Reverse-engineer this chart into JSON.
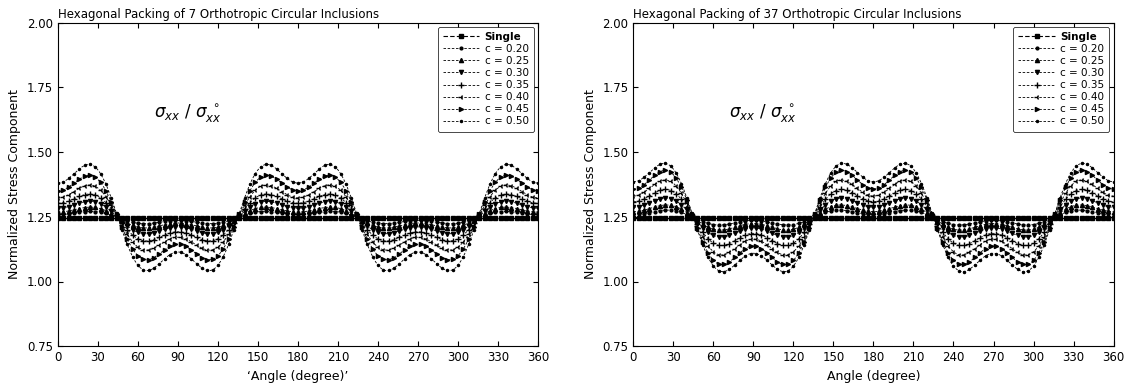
{
  "plot1_title": "Hexagonal Packing of 7 Orthotropic Circular Inclusions",
  "plot2_title": "Hexagonal Packing of 37 Orthotropic Circular Inclusions",
  "xlabel_left": "‘Angle (degree)’",
  "xlabel_right": "Angle (degree)",
  "ylabel": "Normalized Stress Component",
  "ylim": [
    0.75,
    2.0
  ],
  "xlim": [
    0,
    360
  ],
  "xticks": [
    0,
    30,
    60,
    90,
    120,
    150,
    180,
    210,
    240,
    270,
    300,
    330,
    360
  ],
  "yticks": [
    0.75,
    1.0,
    1.25,
    1.5,
    1.75,
    2.0
  ],
  "legend_labels": [
    "Single",
    "c = 0.20",
    "c = 0.25",
    "c = 0.30",
    "c = 0.35",
    "c = 0.40",
    "c = 0.45",
    "c = 0.50"
  ],
  "single_value": 1.247,
  "c_labels": [
    "c = 0.20",
    "c = 0.25",
    "c = 0.30",
    "c = 0.35",
    "c = 0.40",
    "c = 0.45",
    "c = 0.50"
  ],
  "peaks_7": [
    1.258,
    1.268,
    1.283,
    1.302,
    1.323,
    1.35,
    1.38
  ],
  "valleys_7": [
    1.225,
    1.21,
    1.19,
    1.165,
    1.133,
    1.1,
    1.063
  ],
  "peaks_37": [
    1.258,
    1.27,
    1.287,
    1.308,
    1.33,
    1.357,
    1.385
  ],
  "valleys_37": [
    1.22,
    1.202,
    1.178,
    1.148,
    1.115,
    1.082,
    1.06
  ],
  "n_points": 721,
  "title_fontsize": 8.5,
  "axis_fontsize": 9,
  "legend_fontsize": 7.5,
  "tick_fontsize": 8.5
}
